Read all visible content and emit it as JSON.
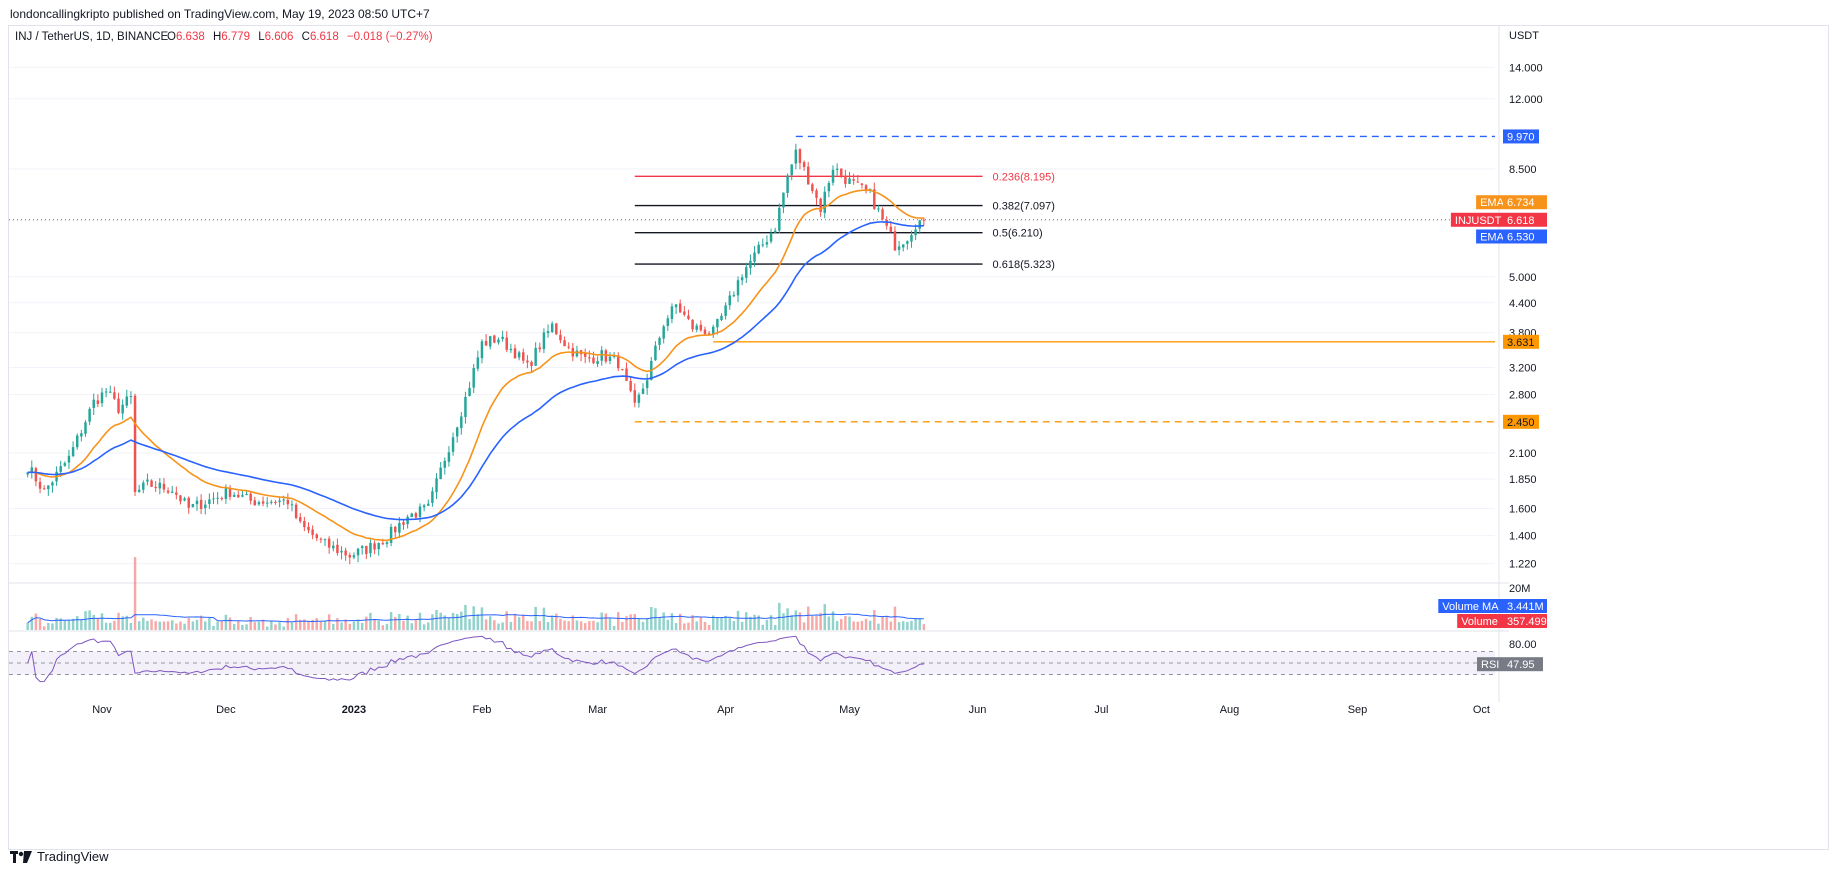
{
  "publisher": "londoncallingkripto published on TradingView.com, May 19, 2023 08:50 UTC+7",
  "legend": {
    "symbol": "INJ / TetherUS, 1D, BINANCE",
    "o_label": "O",
    "o": "6.638",
    "h_label": "H",
    "h": "6.779",
    "l_label": "L",
    "l": "6.606",
    "c_label": "C",
    "c": "6.618",
    "change": "−0.018 (−0.27%)"
  },
  "footer": {
    "brand": "TradingView",
    "logo_icon": "tradingview-logo-icon"
  },
  "colors": {
    "up": "#26a69a",
    "down": "#ef5350",
    "ema_fast": "#f7931a",
    "ema_slow": "#2962ff",
    "rsi": "#7e57c2",
    "vol_ma": "#2962ff",
    "red_level": "#f23645",
    "orange_level": "#ff9800"
  },
  "chart_data": [
    {
      "type": "candlestick",
      "title": "",
      "xlabel": "",
      "ylabel": "",
      "y_axis_label": "USDT",
      "y_scale": "log",
      "ylim": [
        1.12,
        16.5
      ],
      "x_tick_labels": [
        "Nov",
        "Dec",
        "2023",
        "Feb",
        "Mar",
        "Apr",
        "May",
        "Jun",
        "Jul",
        "Aug",
        "Sep",
        "Oct"
      ],
      "y_tick_labels": [
        "14.000",
        "12.000",
        "8.500",
        "5.000",
        "4.400",
        "3.800",
        "3.200",
        "2.800",
        "2.100",
        "1.850",
        "1.600",
        "1.400",
        "1.220"
      ],
      "y_ticks": [
        14,
        12,
        8.5,
        5.0,
        4.4,
        3.8,
        3.2,
        2.8,
        2.1,
        1.85,
        1.6,
        1.4,
        1.22
      ],
      "keypoints": [
        [
          "2022-10-14",
          1.97
        ],
        [
          "2022-10-18",
          1.74
        ],
        [
          "2022-10-24",
          2.05
        ],
        [
          "2022-10-30",
          2.7
        ],
        [
          "2022-11-02",
          2.85
        ],
        [
          "2022-11-05",
          2.62
        ],
        [
          "2022-11-08",
          2.75
        ],
        [
          "2022-11-09",
          1.72
        ],
        [
          "2022-11-12",
          1.8
        ],
        [
          "2022-11-18",
          1.76
        ],
        [
          "2022-11-22",
          1.6
        ],
        [
          "2022-11-28",
          1.68
        ],
        [
          "2022-12-02",
          1.74
        ],
        [
          "2022-12-07",
          1.66
        ],
        [
          "2022-12-12",
          1.66
        ],
        [
          "2022-12-16",
          1.66
        ],
        [
          "2022-12-19",
          1.47
        ],
        [
          "2022-12-25",
          1.34
        ],
        [
          "2022-12-31",
          1.27
        ],
        [
          "2023-01-04",
          1.31
        ],
        [
          "2023-01-09",
          1.39
        ],
        [
          "2023-01-14",
          1.54
        ],
        [
          "2023-01-19",
          1.6
        ],
        [
          "2023-01-23",
          2.05
        ],
        [
          "2023-01-28",
          2.75
        ],
        [
          "2023-02-01",
          3.6
        ],
        [
          "2023-02-05",
          3.7
        ],
        [
          "2023-02-09",
          3.45
        ],
        [
          "2023-02-12",
          3.2
        ],
        [
          "2023-02-16",
          3.7
        ],
        [
          "2023-02-18",
          3.93
        ],
        [
          "2023-02-22",
          3.52
        ],
        [
          "2023-02-26",
          3.33
        ],
        [
          "2023-03-02",
          3.4
        ],
        [
          "2023-03-06",
          3.28
        ],
        [
          "2023-03-10",
          2.62
        ],
        [
          "2023-03-13",
          3.05
        ],
        [
          "2023-03-17",
          3.98
        ],
        [
          "2023-03-20",
          4.35
        ],
        [
          "2023-03-24",
          3.9
        ],
        [
          "2023-03-29",
          3.8
        ],
        [
          "2023-04-01",
          4.25
        ],
        [
          "2023-04-05",
          5.1
        ],
        [
          "2023-04-09",
          5.7
        ],
        [
          "2023-04-13",
          6.4
        ],
        [
          "2023-04-16",
          8.2
        ],
        [
          "2023-04-18",
          9.2
        ],
        [
          "2023-04-21",
          8.1
        ],
        [
          "2023-04-24",
          7.0
        ],
        [
          "2023-04-27",
          8.6
        ],
        [
          "2023-04-30",
          8.1
        ],
        [
          "2023-05-03",
          7.75
        ],
        [
          "2023-05-06",
          7.5
        ],
        [
          "2023-05-09",
          6.6
        ],
        [
          "2023-05-12",
          5.85
        ],
        [
          "2023-05-15",
          6.1
        ],
        [
          "2023-05-17",
          6.5
        ],
        [
          "2023-05-19",
          6.618
        ]
      ],
      "overlays": [
        {
          "name": "EMA",
          "period_days": 20,
          "color": "#f7931a",
          "last_value": "6.734"
        },
        {
          "name": "EMA",
          "period_days": 50,
          "color": "#2962ff",
          "last_value": "6.530"
        }
      ],
      "fib_levels": [
        {
          "label": "0.236(8.195)",
          "value": 8.195,
          "color": "#f23645"
        },
        {
          "label": "0.382(7.097)",
          "value": 7.097,
          "color": "#131722"
        },
        {
          "label": "0.5(6.210)",
          "value": 6.21,
          "color": "#131722"
        },
        {
          "label": "0.618(5.323)",
          "value": 5.323,
          "color": "#131722"
        }
      ],
      "horizontal_levels": [
        {
          "value": 9.97,
          "label": "9.970",
          "style": "dashed",
          "color": "#2962ff",
          "from": "2023-04-18"
        },
        {
          "value": 3.631,
          "label": "3.631",
          "style": "solid",
          "color": "#ff9800",
          "from": "2023-03-29"
        },
        {
          "value": 2.45,
          "label": "2.450",
          "style": "dashed",
          "color": "#ff9800",
          "from": "2023-03-10"
        }
      ],
      "price_labels": [
        {
          "name": "EMA",
          "value": "6.734",
          "color": "#f7931a"
        },
        {
          "name": "INJUSDT",
          "value": "6.618",
          "color": "#f23645"
        },
        {
          "name": "EMA",
          "value": "6.530",
          "color": "#2962ff"
        }
      ],
      "current_price": 6.618
    },
    {
      "type": "bar",
      "title": "Volume",
      "y_tick_labels": [
        "20M"
      ],
      "ylim": [
        0,
        20
      ],
      "unit": "M",
      "labels": [
        {
          "name": "Volume MA",
          "value": "3.441M",
          "color": "#2962ff"
        },
        {
          "name": "Volume",
          "value": "357.499K",
          "color": "#f23645"
        }
      ]
    },
    {
      "type": "line",
      "title": "RSI",
      "ylim": [
        0,
        100
      ],
      "y_tick_labels": [
        "80.00"
      ],
      "band": [
        30,
        70
      ],
      "last_value": "47.95",
      "label": "RSI"
    }
  ]
}
